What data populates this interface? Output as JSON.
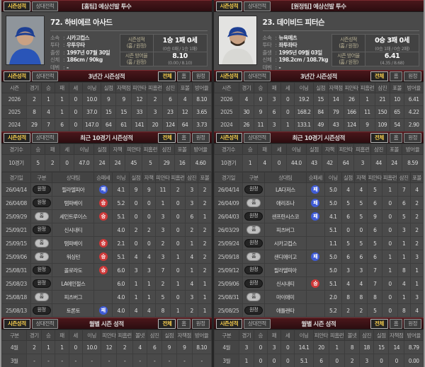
{
  "colors": {
    "accent_tab_yellow": "#f6cd4d",
    "section_bar_red": "#4a171b",
    "win_badge_red": "#ce3838",
    "loss_badge_blue": "#3f5bd6"
  },
  "panels": [
    {
      "tabs": {
        "season": "시즌성적",
        "head_to_head": "상대전적"
      },
      "filter_tabs": {
        "all": "전체",
        "home": "홈",
        "away": "원정"
      },
      "header_title": "[홈팀] 예상선발 투수",
      "player": {
        "name": "72. 하비에르 아사드",
        "photo": {
          "bg": "#8f959b",
          "cap": "#1d3f93",
          "jersey": "#2a55b8"
        },
        "info": [
          {
            "label": "소속",
            "value": "시카고컵스"
          },
          {
            "label": "투타",
            "value": "우투우타"
          },
          {
            "label": "출생",
            "value": "1997년 07월 30일"
          },
          {
            "label": "신체",
            "value": "186cm / 90kg"
          },
          {
            "label": "데뷔",
            "value": "-"
          }
        ],
        "season_summary": [
          {
            "label": "시즌성적",
            "sublabel": "(홈 / 원정)",
            "value": "1승 1패 0세",
            "detail": "(0승 0패 / 1승 1패)"
          },
          {
            "label": "시즌 방어율",
            "sublabel": "(홈 / 원정)",
            "value": "8.10",
            "detail": "(0.00 / 8.10)"
          }
        ]
      },
      "three_year": {
        "title": "3년간 시즌성적",
        "columns": [
          "시즌",
          "경기",
          "승",
          "패",
          "세",
          "이닝",
          "실점",
          "자책점",
          "피안타",
          "피홈런",
          "삼진",
          "포볼",
          "방어율"
        ],
        "rows": [
          [
            "2026",
            "2",
            "1",
            "1",
            "0",
            "10.0",
            "9",
            "9",
            "12",
            "2",
            "6",
            "4",
            "8.10"
          ],
          [
            "2025",
            "8",
            "4",
            "1",
            "0",
            "37.0",
            "15",
            "15",
            "33",
            "3",
            "23",
            "12",
            "3.65"
          ],
          [
            "2024",
            "29",
            "7",
            "6",
            "0",
            "147.0",
            "64",
            "61",
            "141",
            "20",
            "124",
            "64",
            "3.73"
          ]
        ]
      },
      "recent10": {
        "title": "최근 10경기 시즌성적",
        "summary_columns": [
          "경기수",
          "승",
          "패",
          "세",
          "이닝",
          "실점",
          "자책",
          "피안타",
          "피홈런",
          "삼진",
          "포볼",
          "방어율"
        ],
        "summary_row": [
          "10경기",
          "5",
          "2",
          "0",
          "47.0",
          "24",
          "24",
          "45",
          "5",
          "29",
          "16",
          "4.60"
        ],
        "log_columns": [
          "경기일",
          "구분",
          "상대팀",
          "승패세",
          "이닝",
          "실점",
          "자책",
          "피안타",
          "피홈런",
          "삼진",
          "포볼"
        ],
        "log_rows": [
          [
            "26/04/14",
            "원정",
            "필라델피아",
            "패",
            "4.1",
            "9",
            "9",
            "11",
            "2",
            "3",
            "2"
          ],
          [
            "26/04/08",
            "원정",
            "탬파베이",
            "승",
            "5.2",
            "0",
            "0",
            "1",
            "0",
            "3",
            "2"
          ],
          [
            "25/09/29",
            "홈",
            "세인트루이스",
            "승",
            "5.1",
            "0",
            "0",
            "3",
            "0",
            "6",
            "1"
          ],
          [
            "25/09/21",
            "원정",
            "신시내티",
            "",
            "4.0",
            "2",
            "2",
            "3",
            "0",
            "2",
            "2"
          ],
          [
            "25/09/15",
            "홈",
            "탬파베이",
            "승",
            "2.1",
            "0",
            "0",
            "2",
            "0",
            "1",
            "2"
          ],
          [
            "25/09/06",
            "홈",
            "워싱턴",
            "승",
            "5.1",
            "4",
            "4",
            "3",
            "1",
            "4",
            "2"
          ],
          [
            "25/08/31",
            "원정",
            "콜로라도",
            "승",
            "6.0",
            "3",
            "3",
            "7",
            "0",
            "1",
            "2"
          ],
          [
            "25/08/23",
            "원정",
            "LA에인절스",
            "",
            "6.0",
            "1",
            "1",
            "2",
            "1",
            "4",
            "1"
          ],
          [
            "25/08/18",
            "홈",
            "피츠버그",
            "",
            "4.0",
            "1",
            "1",
            "5",
            "0",
            "3",
            "1"
          ],
          [
            "25/08/13",
            "원정",
            "토론토",
            "패",
            "4.0",
            "4",
            "4",
            "8",
            "1",
            "2",
            "1"
          ]
        ]
      },
      "monthly": {
        "title": "월별 시즌 성적",
        "columns": [
          "구분",
          "경기",
          "승",
          "패",
          "세",
          "이닝",
          "피안타",
          "피홈런",
          "볼넷",
          "삼진",
          "실점",
          "자책점",
          "방어율"
        ],
        "rows": [
          [
            "4월",
            "2",
            "1",
            "1",
            "0",
            "10.0",
            "12",
            "2",
            "4",
            "6",
            "9",
            "9",
            "8.10"
          ],
          [
            "3월",
            "-",
            "-",
            "-",
            "-",
            "-",
            "-",
            "-",
            "-",
            "-",
            "-",
            "-",
            "-"
          ]
        ]
      }
    },
    {
      "tabs": {
        "season": "시즌성적",
        "head_to_head": "상대전적"
      },
      "filter_tabs": {
        "all": "전체",
        "home": "홈",
        "away": "원정"
      },
      "header_title": "[원정팀] 예상선발 투수",
      "player": {
        "name": "23. 데이비드 피터슨",
        "photo": {
          "bg": "#e3e3e1",
          "cap": "#1d3f93",
          "jersey": "#d8d8d4"
        },
        "info": [
          {
            "label": "소속",
            "value": "뉴욕메츠"
          },
          {
            "label": "투타",
            "value": "좌투좌타"
          },
          {
            "label": "출생",
            "value": "1995년 09월 03일"
          },
          {
            "label": "신체",
            "value": "198.2cm / 108.7kg"
          },
          {
            "label": "데뷔",
            "value": "-"
          }
        ],
        "season_summary": [
          {
            "label": "시즌성적",
            "sublabel": "(홈 / 원정)",
            "value": "0승 3패 0세",
            "detail": "(0승 1패 / 0승 2패)"
          },
          {
            "label": "시즌 방어율",
            "sublabel": "(홈 / 원정)",
            "value": "6.41",
            "detail": "(4.35 / 8.68)"
          }
        ]
      },
      "three_year": {
        "title": "3년간 시즌성적",
        "columns": [
          "시즌",
          "경기",
          "승",
          "패",
          "세",
          "이닝",
          "실점",
          "자책점",
          "피안타",
          "피홈런",
          "삼진",
          "포볼",
          "방어율"
        ],
        "rows": [
          [
            "2026",
            "4",
            "0",
            "3",
            "0",
            "19.2",
            "15",
            "14",
            "26",
            "1",
            "21",
            "10",
            "6.41"
          ],
          [
            "2025",
            "30",
            "9",
            "6",
            "0",
            "168.2",
            "84",
            "79",
            "166",
            "11",
            "150",
            "65",
            "4.22"
          ],
          [
            "2024",
            "26",
            "11",
            "3",
            "1",
            "133.1",
            "49",
            "43",
            "124",
            "9",
            "109",
            "54",
            "2.90"
          ]
        ]
      },
      "recent10": {
        "title": "최근 10경기 시즌성적",
        "summary_columns": [
          "경기수",
          "승",
          "패",
          "세",
          "이닝",
          "실점",
          "자책",
          "피안타",
          "피홈런",
          "삼진",
          "포볼",
          "방어율"
        ],
        "summary_row": [
          "10경기",
          "1",
          "4",
          "0",
          "44.0",
          "43",
          "42",
          "64",
          "3",
          "44",
          "24",
          "8.59"
        ],
        "log_columns": [
          "경기일",
          "구분",
          "상대팀",
          "승패세",
          "이닝",
          "실점",
          "자책",
          "피안타",
          "피홈런",
          "삼진",
          "포볼"
        ],
        "log_rows": [
          [
            "26/04/14",
            "원정",
            "LA다저스",
            "패",
            "5.0",
            "4",
            "4",
            "5",
            "1",
            "7",
            "4"
          ],
          [
            "26/04/09",
            "홈",
            "애리조나",
            "패",
            "5.0",
            "5",
            "5",
            "6",
            "0",
            "6",
            "2"
          ],
          [
            "26/04/03",
            "원정",
            "샌프란시스코",
            "패",
            "4.1",
            "6",
            "5",
            "9",
            "0",
            "5",
            "2"
          ],
          [
            "26/03/29",
            "홈",
            "피츠버그",
            "",
            "5.1",
            "0",
            "0",
            "6",
            "0",
            "3",
            "2"
          ],
          [
            "25/09/24",
            "원정",
            "시카고컵스",
            "",
            "1.1",
            "5",
            "5",
            "5",
            "0",
            "1",
            "2"
          ],
          [
            "25/09/18",
            "홈",
            "샌디에이고",
            "패",
            "5.0",
            "6",
            "6",
            "6",
            "1",
            "1",
            "3"
          ],
          [
            "25/09/12",
            "원정",
            "필라델피아",
            "",
            "5.0",
            "3",
            "3",
            "7",
            "1",
            "8",
            "1"
          ],
          [
            "25/09/06",
            "원정",
            "신시내티",
            "승",
            "5.1",
            "4",
            "4",
            "7",
            "0",
            "4",
            "1"
          ],
          [
            "25/08/31",
            "홈",
            "마이애미",
            "",
            "2.0",
            "8",
            "8",
            "8",
            "0",
            "1",
            "3"
          ],
          [
            "25/08/25",
            "원정",
            "애틀랜타",
            "",
            "5.2",
            "2",
            "2",
            "5",
            "0",
            "8",
            "4"
          ]
        ]
      },
      "monthly": {
        "title": "월별 시즌 성적",
        "columns": [
          "구분",
          "경기",
          "승",
          "패",
          "세",
          "이닝",
          "피안타",
          "피홈런",
          "볼넷",
          "삼진",
          "실점",
          "자책점",
          "방어율"
        ],
        "rows": [
          [
            "4월",
            "3",
            "0",
            "3",
            "0",
            "14.1",
            "20",
            "1",
            "8",
            "18",
            "15",
            "14",
            "8.79"
          ],
          [
            "3월",
            "1",
            "0",
            "0",
            "0",
            "5.1",
            "6",
            "0",
            "2",
            "3",
            "0",
            "0",
            "0.00"
          ]
        ]
      }
    }
  ]
}
